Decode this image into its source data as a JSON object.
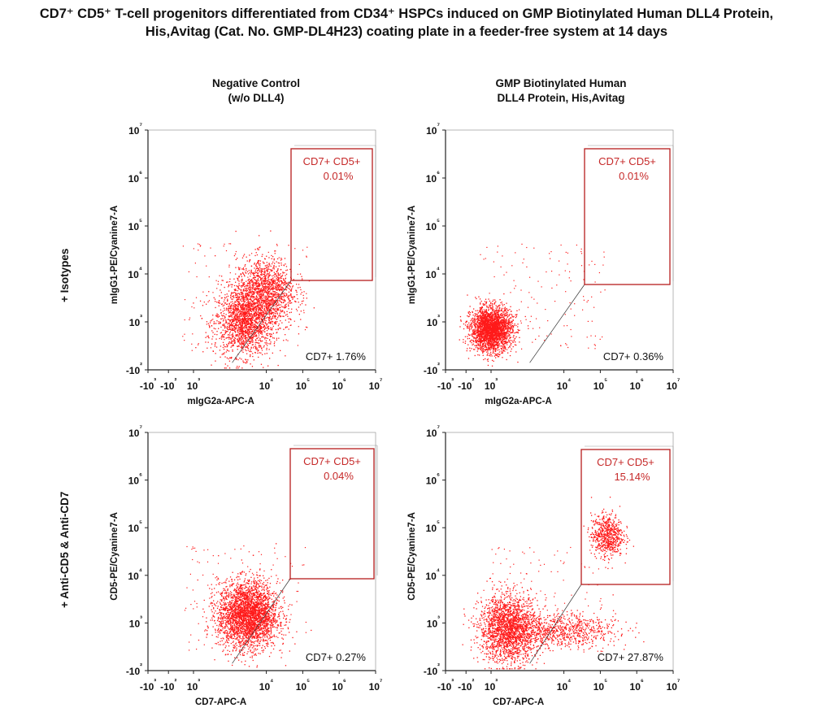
{
  "figure": {
    "title_line1": "CD7⁺ CD5⁺ T-cell progenitors differentiated from CD34⁺ HSPCs induced on GMP Biotinylated Human DLL4 Protein,",
    "title_line2": "His,Avitag (Cat. No. GMP-DL4H23) coating plate in a feeder-free system at 14 days",
    "col_left_line1": "Negative Control",
    "col_left_line2": "(w/o DLL4)",
    "col_right_line1": "GMP Biotinylated Human",
    "col_right_line2": "DLL4 Protein, His,Avitag",
    "row_top": "+ Isotypes",
    "row_bottom": "+ Anti-CD5 & Anti-CD7",
    "dot_color": "#ff1a1a",
    "gate_color": "#b71c1c"
  },
  "chart_data": [
    {
      "type": "scatter",
      "panel": "Negative Control (w/o DLL4), + Isotypes",
      "xlabel": "mIgG2a-APC-A",
      "ylabel": "mIgG1-PE/Cyanine7-A",
      "scale": "biexponential (log)",
      "xlim": [
        -1000,
        10000000
      ],
      "ylim": [
        -100,
        10000000
      ],
      "x_ticks": [
        "-10³",
        "-10²",
        "10³",
        "10⁴",
        "10⁵",
        "10⁶",
        "10⁷"
      ],
      "y_ticks": [
        "-10²",
        "10³",
        "10⁴",
        "10⁵",
        "10⁶",
        "10⁷"
      ],
      "gates": [
        {
          "name": "CD7+ CD5+",
          "label": "CD7+ CD5+",
          "value_text": "0.01%",
          "percent": 0.01
        },
        {
          "name": "CD7+",
          "label": "CD7+",
          "value_text": "1.76%",
          "percent": 1.76
        }
      ],
      "populations": [
        {
          "center_x": 2500,
          "center_y": 1000,
          "n": 1700
        },
        {
          "center_x": 9000,
          "center_y": 4500,
          "n": 1400
        }
      ]
    },
    {
      "type": "scatter",
      "panel": "GMP Biotinylated Human DLL4 Protein, His,Avitag, + Isotypes",
      "xlabel": "mIgG2a-APC-A",
      "ylabel": "mIgG1-PE/Cyanine7-A",
      "scale": "biexponential (log)",
      "xlim": [
        -1000,
        10000000
      ],
      "ylim": [
        -100,
        10000000
      ],
      "x_ticks": [
        "-10³",
        "-10²",
        "10³",
        "10⁴",
        "10⁵",
        "10⁶",
        "10⁷"
      ],
      "y_ticks": [
        "-10²",
        "10³",
        "10⁴",
        "10⁵",
        "10⁶",
        "10⁷"
      ],
      "gates": [
        {
          "name": "CD7+ CD5+",
          "label": "CD7+ CD5+",
          "value_text": "0.01%",
          "percent": 0.01
        },
        {
          "name": "CD7+",
          "label": "CD7+",
          "value_text": "0.36%",
          "percent": 0.36
        }
      ],
      "populations": [
        {
          "center_x": 100,
          "center_y": 300,
          "n": 2600
        }
      ]
    },
    {
      "type": "scatter",
      "panel": "Negative Control (w/o DLL4), + Anti-CD5 & Anti-CD7",
      "xlabel": "CD7-APC-A",
      "ylabel": "CD5-PE/Cyanine7-A",
      "scale": "biexponential (log)",
      "xlim": [
        -1000,
        10000000
      ],
      "ylim": [
        -100,
        10000000
      ],
      "x_ticks": [
        "-10³",
        "-10²",
        "10³",
        "10⁴",
        "10⁵",
        "10⁶",
        "10⁷"
      ],
      "y_ticks": [
        "-10²",
        "10³",
        "10⁴",
        "10⁵",
        "10⁶",
        "10⁷"
      ],
      "gates": [
        {
          "name": "CD7+ CD5+",
          "label": "CD7+ CD5+",
          "value_text": "0.04%",
          "percent": 0.04
        },
        {
          "name": "CD7+",
          "label": "CD7+",
          "value_text": "0.27%",
          "percent": 0.27
        }
      ],
      "populations": [
        {
          "center_x": 3000,
          "center_y": 1500,
          "n": 3000
        }
      ]
    },
    {
      "type": "scatter",
      "panel": "GMP Biotinylated Human DLL4 Protein, His,Avitag, + Anti-CD5 & Anti-CD7",
      "xlabel": "CD7-APC-A",
      "ylabel": "CD5-PE/Cyanine7-A",
      "scale": "biexponential (log)",
      "xlim": [
        -1000,
        10000000
      ],
      "ylim": [
        -100,
        10000000
      ],
      "x_ticks": [
        "-10³",
        "-10²",
        "10³",
        "10⁴",
        "10⁵",
        "10⁶",
        "10⁷"
      ],
      "y_ticks": [
        "-10²",
        "10³",
        "10⁴",
        "10⁵",
        "10⁶",
        "10⁷"
      ],
      "gates": [
        {
          "name": "CD7+ CD5+",
          "label": "CD7+ CD5+",
          "value_text": "15.14%",
          "percent": 15.14
        },
        {
          "name": "CD7+",
          "label": "CD7+",
          "value_text": "27.87%",
          "percent": 27.87
        }
      ],
      "populations": [
        {
          "center_x": 300,
          "center_y": 400,
          "n": 2000
        },
        {
          "center_x": 8000,
          "center_y": 300,
          "n": 800
        },
        {
          "center_x": 150000,
          "center_y": 70000,
          "n": 650
        }
      ]
    }
  ]
}
